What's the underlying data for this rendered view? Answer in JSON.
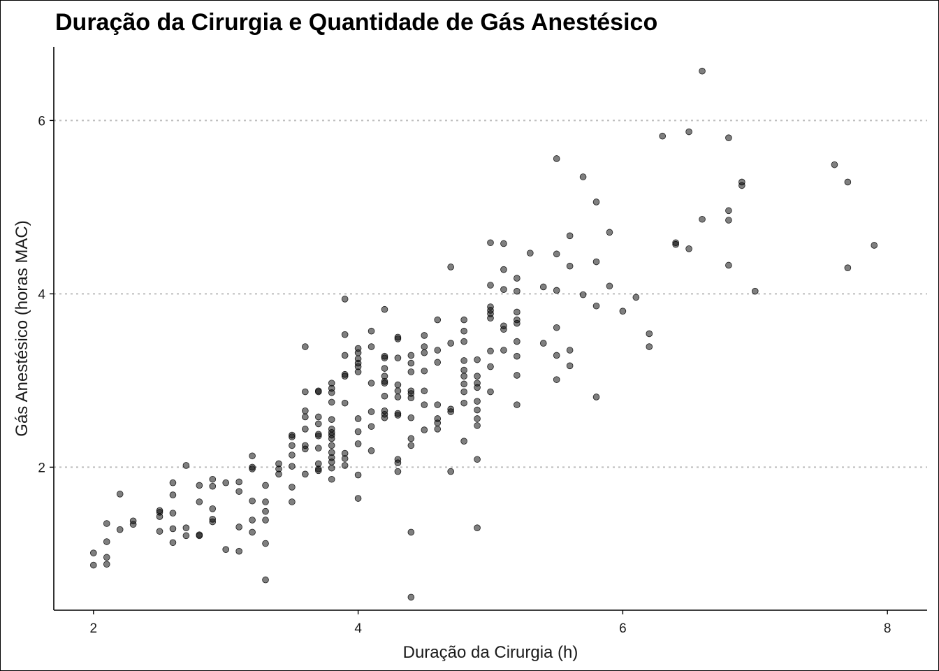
{
  "chart_data": {
    "type": "scatter",
    "title": "Duração da Cirurgia e Quantidade de Gás Anestésico",
    "xlabel": "Duração da Cirurgia (h)",
    "ylabel": "Gás Anestésico (horas MAC)",
    "xlim": [
      1.7,
      8.3
    ],
    "ylim": [
      0.35,
      6.85
    ],
    "x_ticks": [
      2,
      4,
      6,
      8
    ],
    "y_ticks": [
      2,
      4,
      6
    ],
    "x_tick_labels": [
      "2",
      "4",
      "6",
      "8"
    ],
    "y_tick_labels": [
      "2",
      "4",
      "6"
    ],
    "grid": "horizontal dotted at y ticks",
    "legend": "none",
    "colors": {
      "point_fill": "#000000",
      "point_alpha": 0.5,
      "grid": "#bdbdbd"
    },
    "points": [
      [
        2.0,
        1.01
      ],
      [
        2.0,
        0.87
      ],
      [
        2.1,
        1.35
      ],
      [
        2.1,
        1.14
      ],
      [
        2.1,
        0.96
      ],
      [
        2.1,
        0.88
      ],
      [
        2.2,
        1.69
      ],
      [
        2.2,
        1.28
      ],
      [
        2.3,
        1.38
      ],
      [
        2.3,
        1.34
      ],
      [
        2.5,
        1.5
      ],
      [
        2.5,
        1.48
      ],
      [
        2.5,
        1.43
      ],
      [
        2.5,
        1.26
      ],
      [
        2.6,
        1.82
      ],
      [
        2.6,
        1.68
      ],
      [
        2.6,
        1.47
      ],
      [
        2.6,
        1.29
      ],
      [
        2.6,
        1.13
      ],
      [
        2.7,
        2.02
      ],
      [
        2.7,
        1.3
      ],
      [
        2.7,
        1.21
      ],
      [
        2.8,
        1.79
      ],
      [
        2.8,
        1.6
      ],
      [
        2.8,
        1.22
      ],
      [
        2.8,
        1.21
      ],
      [
        2.9,
        1.86
      ],
      [
        2.9,
        1.78
      ],
      [
        2.9,
        1.52
      ],
      [
        2.9,
        1.4
      ],
      [
        2.9,
        1.37
      ],
      [
        3.0,
        1.82
      ],
      [
        3.0,
        1.05
      ],
      [
        3.1,
        1.83
      ],
      [
        3.1,
        1.72
      ],
      [
        3.1,
        1.31
      ],
      [
        3.1,
        1.03
      ],
      [
        3.2,
        2.13
      ],
      [
        3.2,
        2.0
      ],
      [
        3.2,
        1.98
      ],
      [
        3.2,
        1.61
      ],
      [
        3.2,
        1.39
      ],
      [
        3.2,
        1.25
      ],
      [
        3.3,
        1.79
      ],
      [
        3.3,
        1.6
      ],
      [
        3.3,
        1.49
      ],
      [
        3.3,
        1.39
      ],
      [
        3.3,
        1.12
      ],
      [
        3.3,
        0.7
      ],
      [
        3.4,
        2.04
      ],
      [
        3.4,
        1.98
      ],
      [
        3.4,
        1.92
      ],
      [
        3.5,
        2.37
      ],
      [
        3.5,
        2.35
      ],
      [
        3.5,
        2.25
      ],
      [
        3.5,
        2.14
      ],
      [
        3.5,
        2.01
      ],
      [
        3.5,
        1.77
      ],
      [
        3.5,
        1.6
      ],
      [
        3.6,
        3.39
      ],
      [
        3.6,
        2.87
      ],
      [
        3.6,
        2.65
      ],
      [
        3.6,
        2.58
      ],
      [
        3.6,
        2.44
      ],
      [
        3.6,
        2.25
      ],
      [
        3.6,
        2.21
      ],
      [
        3.6,
        1.92
      ],
      [
        3.7,
        2.88
      ],
      [
        3.7,
        2.87
      ],
      [
        3.7,
        2.58
      ],
      [
        3.7,
        2.5
      ],
      [
        3.7,
        2.38
      ],
      [
        3.7,
        2.36
      ],
      [
        3.7,
        2.22
      ],
      [
        3.7,
        2.04
      ],
      [
        3.7,
        1.98
      ],
      [
        3.7,
        1.96
      ],
      [
        3.8,
        2.97
      ],
      [
        3.8,
        2.91
      ],
      [
        3.8,
        2.86
      ],
      [
        3.8,
        2.75
      ],
      [
        3.8,
        2.55
      ],
      [
        3.8,
        2.44
      ],
      [
        3.8,
        2.4
      ],
      [
        3.8,
        2.37
      ],
      [
        3.8,
        2.33
      ],
      [
        3.8,
        2.25
      ],
      [
        3.8,
        2.17
      ],
      [
        3.8,
        2.11
      ],
      [
        3.8,
        2.06
      ],
      [
        3.8,
        1.99
      ],
      [
        3.8,
        1.86
      ],
      [
        3.9,
        3.94
      ],
      [
        3.9,
        3.53
      ],
      [
        3.9,
        3.29
      ],
      [
        3.9,
        3.07
      ],
      [
        3.9,
        3.05
      ],
      [
        3.9,
        2.74
      ],
      [
        3.9,
        2.16
      ],
      [
        3.9,
        2.1
      ],
      [
        3.9,
        2.02
      ],
      [
        4.0,
        3.37
      ],
      [
        4.0,
        3.32
      ],
      [
        4.0,
        3.25
      ],
      [
        4.0,
        3.2
      ],
      [
        4.0,
        3.16
      ],
      [
        4.0,
        3.1
      ],
      [
        4.0,
        2.56
      ],
      [
        4.0,
        2.41
      ],
      [
        4.0,
        2.27
      ],
      [
        4.0,
        1.91
      ],
      [
        4.0,
        1.64
      ],
      [
        4.1,
        3.57
      ],
      [
        4.1,
        3.39
      ],
      [
        4.1,
        2.97
      ],
      [
        4.1,
        2.64
      ],
      [
        4.1,
        2.47
      ],
      [
        4.1,
        2.19
      ],
      [
        4.2,
        3.82
      ],
      [
        4.2,
        3.28
      ],
      [
        4.2,
        3.26
      ],
      [
        4.2,
        3.14
      ],
      [
        4.2,
        3.05
      ],
      [
        4.2,
        2.99
      ],
      [
        4.2,
        2.97
      ],
      [
        4.2,
        2.82
      ],
      [
        4.2,
        2.65
      ],
      [
        4.2,
        2.61
      ],
      [
        4.2,
        2.57
      ],
      [
        4.3,
        3.5
      ],
      [
        4.3,
        3.48
      ],
      [
        4.3,
        3.26
      ],
      [
        4.3,
        2.95
      ],
      [
        4.3,
        2.88
      ],
      [
        4.3,
        2.81
      ],
      [
        4.3,
        2.62
      ],
      [
        4.3,
        2.6
      ],
      [
        4.3,
        2.09
      ],
      [
        4.3,
        2.05
      ],
      [
        4.3,
        1.95
      ],
      [
        4.4,
        3.29
      ],
      [
        4.4,
        3.2
      ],
      [
        4.4,
        3.1
      ],
      [
        4.4,
        2.88
      ],
      [
        4.4,
        2.85
      ],
      [
        4.4,
        2.8
      ],
      [
        4.4,
        2.57
      ],
      [
        4.4,
        2.33
      ],
      [
        4.4,
        2.25
      ],
      [
        4.4,
        1.25
      ],
      [
        4.4,
        0.5
      ],
      [
        4.5,
        3.52
      ],
      [
        4.5,
        3.39
      ],
      [
        4.5,
        3.32
      ],
      [
        4.5,
        3.11
      ],
      [
        4.5,
        2.88
      ],
      [
        4.5,
        2.72
      ],
      [
        4.5,
        2.43
      ],
      [
        4.6,
        3.7
      ],
      [
        4.6,
        3.35
      ],
      [
        4.6,
        3.21
      ],
      [
        4.6,
        2.72
      ],
      [
        4.6,
        2.56
      ],
      [
        4.6,
        2.51
      ],
      [
        4.6,
        2.44
      ],
      [
        4.7,
        4.31
      ],
      [
        4.7,
        3.43
      ],
      [
        4.7,
        2.67
      ],
      [
        4.7,
        2.64
      ],
      [
        4.7,
        1.95
      ],
      [
        4.8,
        3.7
      ],
      [
        4.8,
        3.57
      ],
      [
        4.8,
        3.45
      ],
      [
        4.8,
        3.23
      ],
      [
        4.8,
        3.12
      ],
      [
        4.8,
        3.05
      ],
      [
        4.8,
        2.96
      ],
      [
        4.8,
        2.87
      ],
      [
        4.8,
        2.74
      ],
      [
        4.8,
        2.3
      ],
      [
        4.9,
        3.24
      ],
      [
        4.9,
        3.05
      ],
      [
        4.9,
        2.97
      ],
      [
        4.9,
        2.92
      ],
      [
        4.9,
        2.76
      ],
      [
        4.9,
        2.66
      ],
      [
        4.9,
        2.56
      ],
      [
        4.9,
        2.48
      ],
      [
        4.9,
        2.09
      ],
      [
        4.9,
        1.3
      ],
      [
        5.0,
        4.59
      ],
      [
        5.0,
        4.1
      ],
      [
        5.0,
        3.85
      ],
      [
        5.0,
        3.81
      ],
      [
        5.0,
        3.77
      ],
      [
        5.0,
        3.72
      ],
      [
        5.0,
        3.34
      ],
      [
        5.0,
        3.16
      ],
      [
        5.0,
        2.87
      ],
      [
        5.1,
        4.58
      ],
      [
        5.1,
        4.28
      ],
      [
        5.1,
        4.05
      ],
      [
        5.1,
        3.63
      ],
      [
        5.1,
        3.59
      ],
      [
        5.1,
        3.35
      ],
      [
        5.2,
        4.18
      ],
      [
        5.2,
        4.03
      ],
      [
        5.2,
        3.79
      ],
      [
        5.2,
        3.7
      ],
      [
        5.2,
        3.66
      ],
      [
        5.2,
        3.45
      ],
      [
        5.2,
        3.28
      ],
      [
        5.2,
        3.06
      ],
      [
        5.2,
        2.72
      ],
      [
        5.3,
        4.47
      ],
      [
        5.4,
        4.08
      ],
      [
        5.4,
        3.43
      ],
      [
        5.5,
        5.56
      ],
      [
        5.5,
        4.46
      ],
      [
        5.5,
        4.04
      ],
      [
        5.5,
        3.61
      ],
      [
        5.5,
        3.29
      ],
      [
        5.5,
        3.01
      ],
      [
        5.6,
        4.67
      ],
      [
        5.6,
        4.32
      ],
      [
        5.6,
        3.35
      ],
      [
        5.6,
        3.17
      ],
      [
        5.7,
        5.35
      ],
      [
        5.7,
        3.99
      ],
      [
        5.8,
        5.06
      ],
      [
        5.8,
        4.37
      ],
      [
        5.8,
        3.86
      ],
      [
        5.8,
        2.81
      ],
      [
        5.9,
        4.71
      ],
      [
        5.9,
        4.09
      ],
      [
        6.0,
        3.8
      ],
      [
        6.1,
        3.96
      ],
      [
        6.2,
        3.54
      ],
      [
        6.2,
        3.39
      ],
      [
        6.3,
        5.82
      ],
      [
        6.4,
        4.59
      ],
      [
        6.4,
        4.57
      ],
      [
        6.5,
        5.87
      ],
      [
        6.5,
        4.52
      ],
      [
        6.6,
        6.57
      ],
      [
        6.6,
        4.86
      ],
      [
        6.8,
        5.8
      ],
      [
        6.8,
        4.96
      ],
      [
        6.8,
        4.85
      ],
      [
        6.8,
        4.33
      ],
      [
        6.9,
        5.29
      ],
      [
        6.9,
        5.25
      ],
      [
        7.0,
        4.03
      ],
      [
        7.6,
        5.49
      ],
      [
        7.7,
        5.29
      ],
      [
        7.7,
        4.3
      ],
      [
        7.9,
        4.56
      ]
    ]
  }
}
